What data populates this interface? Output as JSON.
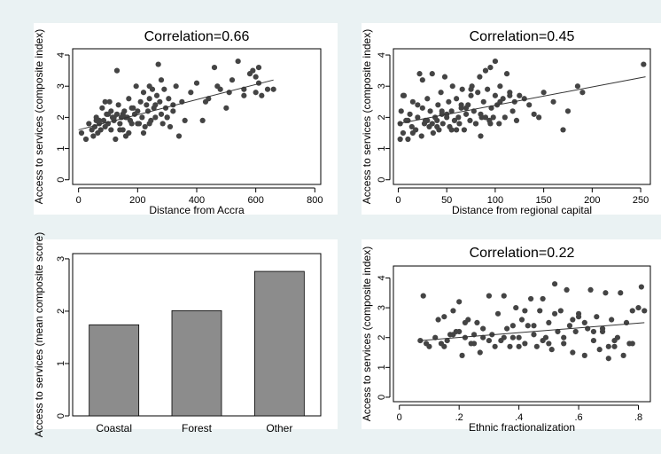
{
  "colors": {
    "background": "#eaf2f3",
    "plot_background": "#ffffff",
    "points": "#444444",
    "bars": "#8c8c8c",
    "line": "#333333"
  },
  "chart_data": [
    {
      "type": "scatter",
      "title": "Correlation=0.66",
      "xlabel": "Distance from Accra",
      "ylabel": "Access to services (composite index)",
      "xlim": [
        -20,
        820
      ],
      "ylim": [
        -0.15,
        4.2
      ],
      "xticks": [
        0,
        200,
        400,
        600,
        800
      ],
      "yticks": [
        0,
        1,
        2,
        3,
        4
      ],
      "grid": false,
      "fit": {
        "x1": 0,
        "y1": 1.6,
        "x2": 660,
        "y2": 3.2
      },
      "x": [
        10,
        25,
        35,
        45,
        50,
        55,
        60,
        65,
        70,
        75,
        80,
        85,
        90,
        95,
        100,
        105,
        110,
        115,
        120,
        125,
        130,
        135,
        140,
        145,
        150,
        155,
        160,
        165,
        170,
        175,
        180,
        185,
        190,
        195,
        200,
        205,
        210,
        215,
        220,
        225,
        230,
        235,
        240,
        245,
        250,
        255,
        260,
        265,
        270,
        275,
        280,
        285,
        290,
        295,
        300,
        305,
        310,
        320,
        330,
        340,
        350,
        360,
        380,
        400,
        420,
        440,
        460,
        480,
        500,
        520,
        540,
        560,
        580,
        600,
        610,
        620,
        640,
        660,
        70,
        110,
        140,
        160,
        180,
        220,
        260,
        300,
        130,
        90,
        150,
        200,
        240,
        280,
        320,
        560,
        590,
        610,
        430,
        470,
        510,
        600,
        240,
        170,
        120,
        60,
        100
      ],
      "y": [
        1.5,
        1.3,
        1.8,
        1.6,
        1.4,
        1.7,
        2.0,
        1.5,
        1.8,
        1.6,
        2.3,
        1.9,
        1.7,
        2.1,
        1.8,
        2.5,
        1.6,
        2.0,
        1.9,
        1.3,
        2.1,
        2.4,
        1.8,
        2.0,
        1.6,
        2.2,
        1.4,
        2.0,
        2.6,
        1.9,
        1.8,
        2.3,
        2.1,
        3.0,
        2.2,
        1.8,
        2.5,
        2.0,
        2.8,
        1.7,
        2.4,
        2.2,
        2.6,
        1.9,
        2.9,
        2.3,
        2.0,
        2.7,
        3.7,
        2.5,
        2.1,
        1.8,
        2.9,
        2.3,
        2.0,
        2.6,
        1.7,
        2.4,
        3.0,
        1.4,
        2.5,
        1.9,
        2.8,
        3.1,
        1.9,
        2.6,
        3.6,
        2.9,
        2.3,
        3.2,
        3.8,
        2.7,
        3.4,
        2.8,
        3.6,
        2.7,
        2.9,
        2.9,
        1.9,
        2.2,
        1.6,
        2.0,
        2.3,
        1.5,
        2.4,
        2.0,
        3.5,
        2.5,
        2.1,
        1.8,
        3.0,
        3.2,
        2.2,
        2.9,
        3.5,
        3.1,
        2.5,
        3.0,
        2.8,
        3.3,
        1.8,
        1.5,
        2.0,
        1.9,
        2.1
      ]
    },
    {
      "type": "scatter",
      "title": "Correlation=0.45",
      "xlabel": "Distance from regional capital",
      "ylabel": "Access to services (composite index)",
      "xlim": [
        -5,
        260
      ],
      "ylim": [
        -0.15,
        4.2
      ],
      "xticks": [
        0,
        50,
        100,
        150,
        200,
        250
      ],
      "yticks": [
        0,
        1,
        2,
        3,
        4
      ],
      "grid": false,
      "fit": {
        "x1": 0,
        "y1": 1.8,
        "x2": 255,
        "y2": 3.3
      },
      "x": [
        2,
        3,
        5,
        6,
        8,
        10,
        12,
        14,
        15,
        18,
        20,
        22,
        24,
        25,
        27,
        28,
        30,
        32,
        33,
        35,
        36,
        38,
        40,
        41,
        42,
        44,
        45,
        46,
        48,
        50,
        52,
        53,
        55,
        56,
        58,
        60,
        62,
        63,
        65,
        66,
        68,
        70,
        72,
        74,
        75,
        76,
        78,
        80,
        82,
        84,
        85,
        86,
        88,
        90,
        92,
        94,
        95,
        96,
        98,
        100,
        102,
        104,
        105,
        108,
        110,
        112,
        115,
        118,
        120,
        122,
        125,
        130,
        135,
        140,
        145,
        150,
        160,
        170,
        175,
        185,
        190,
        253,
        5,
        10,
        20,
        30,
        40,
        50,
        60,
        70,
        80,
        90,
        100,
        15,
        25,
        35,
        45,
        55,
        65,
        75,
        85,
        95,
        105,
        115,
        2
      ],
      "y": [
        1.8,
        2.2,
        1.5,
        2.7,
        1.9,
        1.3,
        2.1,
        1.7,
        2.5,
        1.6,
        2.0,
        3.4,
        1.4,
        2.3,
        1.8,
        1.9,
        2.6,
        1.7,
        2.2,
        3.4,
        1.5,
        2.0,
        1.9,
        2.4,
        1.6,
        2.8,
        2.1,
        1.8,
        3.3,
        2.0,
        2.5,
        1.7,
        2.2,
        3.0,
        1.9,
        2.6,
        2.0,
        1.8,
        2.3,
        2.9,
        1.6,
        2.1,
        2.4,
        1.9,
        2.7,
        3.0,
        2.2,
        1.8,
        2.8,
        3.3,
        1.4,
        2.0,
        2.5,
        3.5,
        2.9,
        1.9,
        3.6,
        2.3,
        2.0,
        3.8,
        2.4,
        1.8,
        3.0,
        2.6,
        2.0,
        3.4,
        2.8,
        2.2,
        2.5,
        1.9,
        2.7,
        2.6,
        2.4,
        2.1,
        2.0,
        2.8,
        2.5,
        1.6,
        2.2,
        3.0,
        2.8,
        3.7,
        2.7,
        1.9,
        2.4,
        1.9,
        1.7,
        2.1,
        1.6,
        2.3,
        1.8,
        2.0,
        2.7,
        1.5,
        3.2,
        1.8,
        2.2,
        1.6,
        2.4,
        2.9,
        2.1,
        1.8,
        2.5,
        2.7,
        1.3
      ]
    },
    {
      "type": "bar",
      "title": "",
      "xlabel": "",
      "ylabel": "Access to services (mean composite score)",
      "categories": [
        "Coastal",
        "Forest",
        "Other"
      ],
      "values": [
        1.74,
        2.01,
        2.76
      ],
      "ylim": [
        0,
        3.1
      ],
      "yticks": [
        0,
        1,
        2,
        3
      ],
      "grid": false
    },
    {
      "type": "scatter",
      "title": "Correlation=0.22",
      "xlabel": "Ethnic fractionalization",
      "ylabel": "Access to services (composite index)",
      "xlim": [
        -0.02,
        0.84
      ],
      "ylim": [
        -0.15,
        4.4
      ],
      "xticks": [
        0,
        0.2,
        0.4,
        0.6,
        0.8
      ],
      "xtick_labels": [
        "0",
        ".2",
        ".4",
        ".6",
        ".8"
      ],
      "yticks": [
        0,
        1,
        2,
        3,
        4
      ],
      "grid": false,
      "fit": {
        "x1": 0.07,
        "y1": 1.9,
        "x2": 0.82,
        "y2": 2.5
      },
      "x": [
        0.07,
        0.08,
        0.09,
        0.1,
        0.12,
        0.13,
        0.14,
        0.15,
        0.16,
        0.17,
        0.18,
        0.19,
        0.2,
        0.21,
        0.22,
        0.23,
        0.24,
        0.25,
        0.26,
        0.27,
        0.28,
        0.3,
        0.31,
        0.32,
        0.33,
        0.34,
        0.35,
        0.36,
        0.37,
        0.38,
        0.39,
        0.4,
        0.41,
        0.42,
        0.43,
        0.44,
        0.45,
        0.46,
        0.47,
        0.48,
        0.49,
        0.5,
        0.51,
        0.52,
        0.53,
        0.54,
        0.55,
        0.56,
        0.57,
        0.58,
        0.59,
        0.6,
        0.62,
        0.63,
        0.64,
        0.65,
        0.66,
        0.67,
        0.68,
        0.69,
        0.7,
        0.71,
        0.72,
        0.73,
        0.74,
        0.75,
        0.76,
        0.77,
        0.78,
        0.8,
        0.81,
        0.82,
        0.15,
        0.2,
        0.25,
        0.3,
        0.35,
        0.4,
        0.45,
        0.5,
        0.55,
        0.6,
        0.65,
        0.7,
        0.18,
        0.28,
        0.38,
        0.48,
        0.58,
        0.68,
        0.78,
        0.22,
        0.42,
        0.52,
        0.62,
        0.72
      ],
      "y": [
        1.9,
        3.4,
        1.8,
        1.7,
        2.0,
        2.6,
        1.8,
        2.7,
        1.9,
        2.1,
        2.9,
        2.2,
        3.2,
        1.4,
        2.0,
        2.6,
        1.8,
        2.1,
        2.5,
        1.5,
        2.0,
        3.4,
        2.1,
        1.7,
        2.8,
        1.9,
        3.4,
        2.3,
        1.7,
        2.4,
        3.0,
        2.0,
        2.6,
        1.8,
        2.4,
        3.3,
        2.1,
        1.7,
        2.9,
        3.3,
        2.0,
        2.5,
        1.6,
        3.8,
        2.2,
        2.9,
        1.8,
        3.6,
        2.4,
        1.5,
        2.2,
        2.8,
        1.4,
        2.3,
        3.6,
        1.9,
        2.7,
        1.6,
        2.2,
        3.5,
        1.3,
        2.6,
        1.9,
        2.0,
        3.5,
        1.4,
        2.5,
        1.8,
        2.9,
        3.0,
        3.7,
        2.9,
        1.7,
        2.2,
        1.8,
        1.9,
        2.0,
        1.7,
        2.4,
        1.8,
        2.0,
        2.7,
        2.2,
        1.7,
        2.1,
        2.3,
        2.0,
        1.9,
        2.6,
        2.3,
        1.8,
        2.5,
        2.9,
        2.8,
        2.5,
        1.7
      ]
    }
  ]
}
